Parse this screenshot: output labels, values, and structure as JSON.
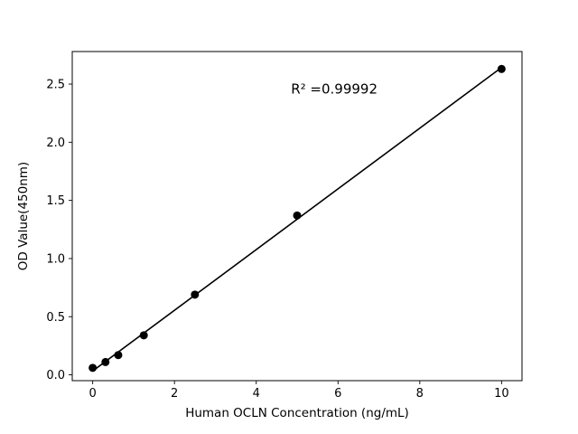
{
  "chart_data": {
    "type": "scatter",
    "title": "",
    "xlabel": "Human OCLN Concentration (ng/mL)",
    "ylabel": "OD Value(450nm)",
    "series": [
      {
        "name": "standard-points",
        "x": [
          0,
          0.3125,
          0.625,
          1.25,
          2.5,
          5,
          10
        ],
        "y": [
          0.06,
          0.11,
          0.17,
          0.34,
          0.69,
          1.37,
          2.63
        ]
      }
    ],
    "fit_line": {
      "type": "linear",
      "x_start": 0,
      "x_end": 10
    },
    "annotation": {
      "text": "R² =0.99992",
      "x": 4.85,
      "y": 2.42
    },
    "xlim": [
      -0.5,
      10.5
    ],
    "ylim": [
      -0.05,
      2.78
    ],
    "xticks": {
      "values": [
        0,
        2,
        4,
        6,
        8,
        10
      ],
      "labels": [
        "0",
        "2",
        "4",
        "6",
        "8",
        "10"
      ]
    },
    "yticks": {
      "values": [
        0,
        0.5,
        1.0,
        1.5,
        2.0,
        2.5
      ],
      "labels": [
        "0.0",
        "0.5",
        "1.0",
        "1.5",
        "2.0",
        "2.5"
      ]
    },
    "grid": false,
    "legend": false,
    "marker_color": "#000000",
    "line_color": "#000000",
    "background_color": "#ffffff"
  }
}
